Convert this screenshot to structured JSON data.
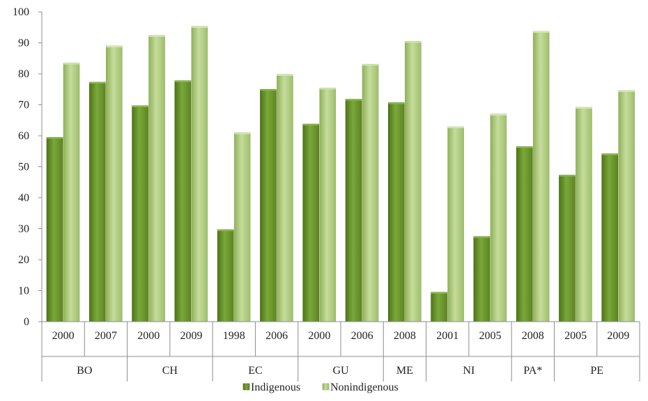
{
  "chart_data": {
    "type": "bar",
    "title": "",
    "xlabel": "",
    "ylabel": "",
    "ylim": [
      0,
      100
    ],
    "yticks": [
      0,
      10,
      20,
      30,
      40,
      50,
      60,
      70,
      80,
      90,
      100
    ],
    "grid": false,
    "legend_position": "bottom",
    "groups": [
      {
        "label": "BO",
        "years": [
          "2000",
          "2007"
        ]
      },
      {
        "label": "CH",
        "years": [
          "2000",
          "2009"
        ]
      },
      {
        "label": "EC",
        "years": [
          "1998",
          "2006"
        ]
      },
      {
        "label": "GU",
        "years": [
          "2000",
          "2006"
        ]
      },
      {
        "label": "ME",
        "years": [
          "2008"
        ]
      },
      {
        "label": "NI",
        "years": [
          "2001",
          "2005"
        ]
      },
      {
        "label": "PA*",
        "years": [
          "2008"
        ]
      },
      {
        "label": "PE",
        "years": [
          "2005",
          "2009"
        ]
      }
    ],
    "series": [
      {
        "name": "Indigenous",
        "color": "#6e9a2a",
        "values": [
          59.5,
          77.3,
          69.7,
          77.8,
          29.7,
          75.0,
          63.8,
          71.8,
          70.7,
          9.5,
          27.5,
          56.5,
          47.3,
          54.2
        ]
      },
      {
        "name": "Nonindigenous",
        "color": "#b2cc7e",
        "values": [
          83.5,
          89.0,
          92.4,
          95.3,
          61.0,
          79.8,
          75.4,
          83.1,
          90.5,
          62.9,
          67.0,
          93.7,
          69.2,
          74.6
        ]
      }
    ]
  }
}
